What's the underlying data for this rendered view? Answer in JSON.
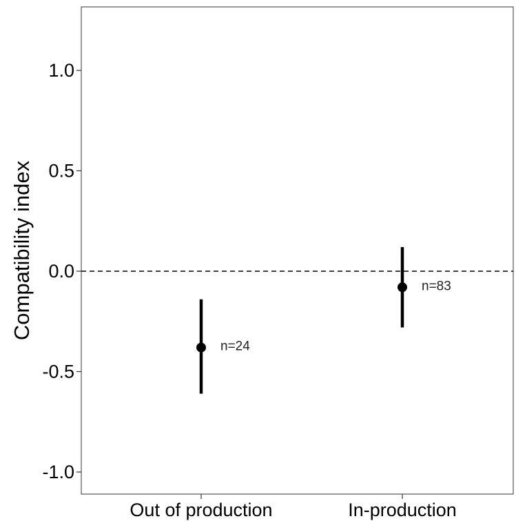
{
  "chart_data": {
    "type": "scatter",
    "title": "",
    "xlabel": "",
    "ylabel": "Compatibility index",
    "categories": [
      "Out of production",
      "In-production"
    ],
    "points": [
      {
        "category": "Out of production",
        "mean": -0.38,
        "lower": -0.61,
        "upper": -0.14,
        "label": "n=24"
      },
      {
        "category": "In-production",
        "mean": -0.08,
        "lower": -0.28,
        "upper": 0.12,
        "label": "n=83"
      }
    ],
    "ylim": [
      -1.1,
      1.3
    ],
    "yticks": [
      1.0,
      0.5,
      0.0,
      -0.5,
      -1.0
    ],
    "ytick_labels": [
      "1.0",
      "0.5",
      "0.0",
      "-0.5",
      "-1.0"
    ],
    "reference_line": {
      "y": 0.0,
      "style": "dashed"
    },
    "grid": false,
    "legend": "none"
  }
}
